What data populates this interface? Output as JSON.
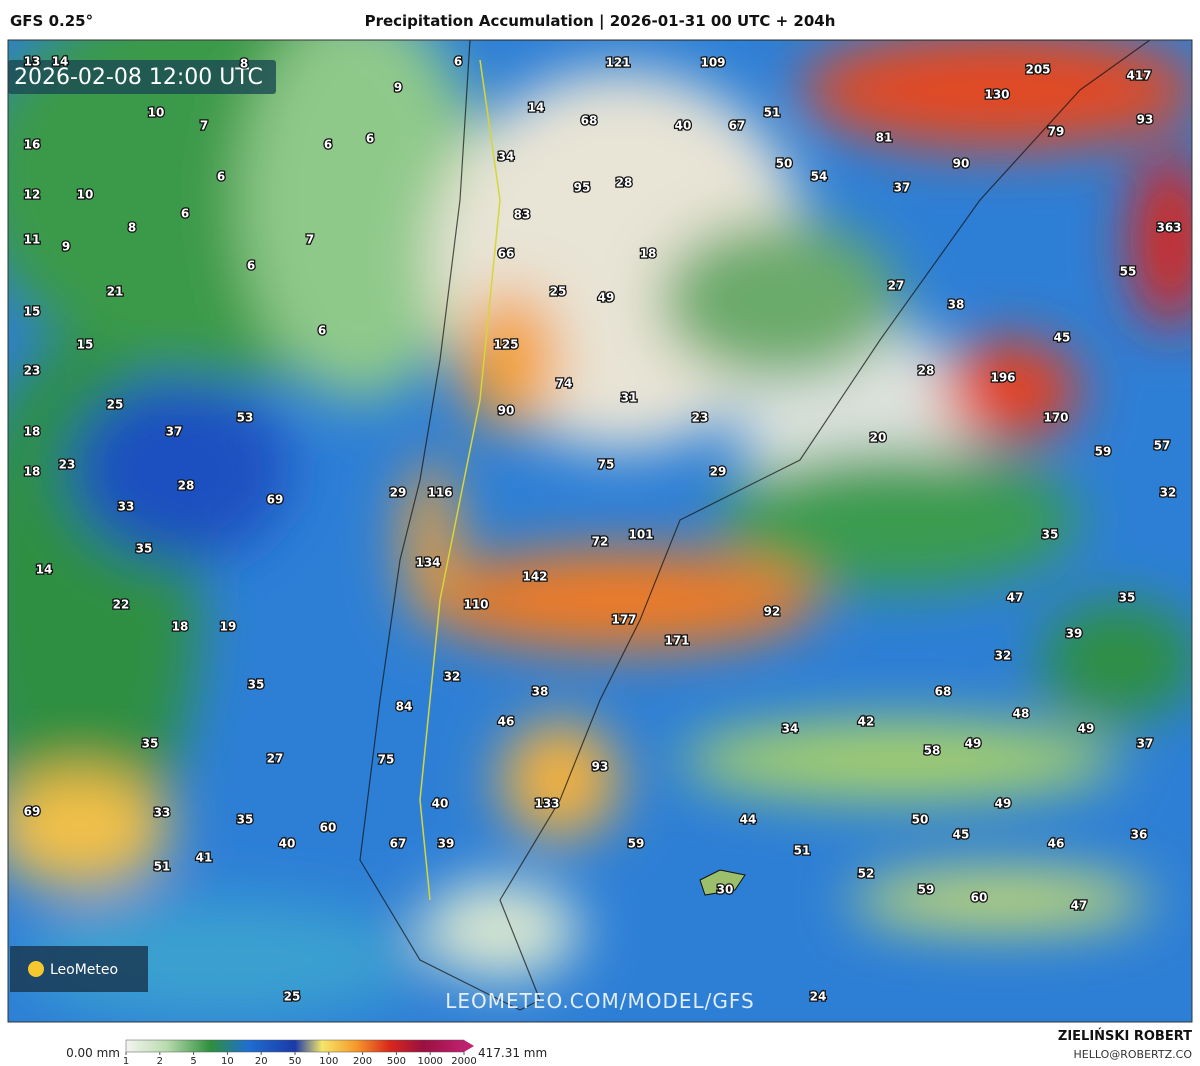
{
  "header": {
    "model": "GFS 0.25°",
    "title": "Precipitation Accumulation | 2026-01-31 00 UTC + 204h"
  },
  "map": {
    "timestamp": "2026-02-08 12:00 UTC",
    "watermark": "LEOMETEO.COM/MODEL/GFS",
    "logo": "LeoMeteo",
    "labels": [
      13,
      14,
      8,
      6,
      9,
      10,
      7,
      16,
      6,
      6,
      6,
      12,
      10,
      6,
      8,
      7,
      11,
      9,
      6,
      21,
      15,
      6,
      15,
      23,
      25,
      53,
      37,
      18,
      23,
      18,
      28,
      69,
      33,
      35,
      14,
      22,
      18,
      19,
      35,
      35,
      27,
      69,
      33,
      35,
      60,
      40,
      41,
      51,
      25,
      121,
      109,
      14,
      68,
      40,
      67,
      51,
      34,
      28,
      95,
      50,
      54,
      83,
      18,
      66,
      25,
      49,
      125,
      74,
      31,
      90,
      23,
      75,
      29,
      29,
      116,
      101,
      72,
      134,
      142,
      110,
      177,
      171,
      92,
      32,
      38,
      46,
      84,
      34,
      75,
      93,
      40,
      133,
      44,
      67,
      39,
      59,
      51,
      30,
      24,
      205,
      417,
      130,
      93,
      79,
      81,
      90,
      37,
      363,
      55,
      27,
      38,
      45,
      196,
      28,
      170,
      20,
      59,
      57,
      32,
      35,
      47,
      35,
      39,
      32,
      68,
      48,
      42,
      49,
      37,
      58,
      49,
      49,
      50,
      45,
      36,
      46,
      52,
      59,
      60,
      47
    ]
  },
  "legend": {
    "min_label": "0.00 mm",
    "ticks": [
      1,
      2,
      5,
      10,
      20,
      50,
      100,
      200,
      500,
      1000,
      2000
    ],
    "max_label": "417.31 mm"
  },
  "footer": {
    "author": "ZIELIŃSKI ROBERT",
    "email": "HELLO@ROBERTZ.CO"
  }
}
